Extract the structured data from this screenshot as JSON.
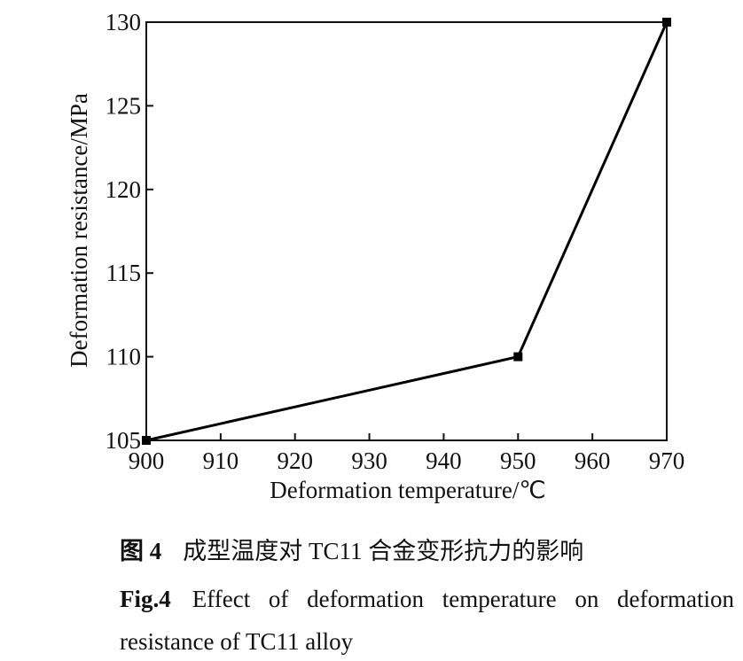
{
  "chart_data": {
    "type": "line",
    "x_label": "Deformation temperature/℃",
    "y_label": "Deformation resistance/MPa",
    "x": [
      900,
      950,
      970
    ],
    "series": [
      {
        "color": "#000000",
        "values": [
          105,
          110,
          130
        ]
      }
    ],
    "xlim": [
      900,
      970
    ],
    "xticks": [
      900,
      910,
      920,
      930,
      940,
      950,
      960,
      970
    ],
    "ylim": [
      105,
      130
    ],
    "yticks": [
      105,
      110,
      115,
      120,
      125,
      130
    ],
    "grid": false,
    "markers": "square"
  },
  "caption": {
    "zh_label": "图 4",
    "zh_text": "成型温度对 TC11 合金变形抗力的影响",
    "en_label": "Fig.4",
    "en_text": "Effect of deformation temperature on deformation resistance of TC11 alloy"
  }
}
